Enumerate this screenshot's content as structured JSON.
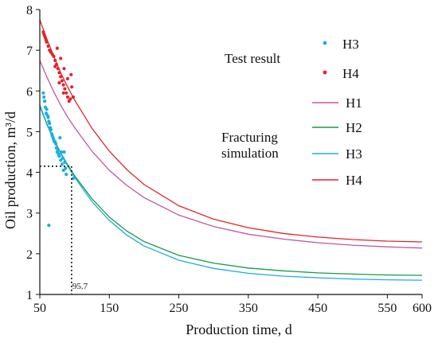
{
  "chart_data": {
    "type": "line",
    "xlabel": "Production time, d",
    "ylabel": "Oil production, m³/d",
    "xlim": [
      50,
      600
    ],
    "ylim": [
      1,
      8
    ],
    "xticks": [
      50,
      150,
      250,
      350,
      450,
      550,
      600
    ],
    "yticks": [
      1,
      2,
      3,
      4,
      5,
      6,
      7,
      8
    ],
    "grid": false,
    "legend_groups": [
      {
        "label": "Test result",
        "entries": [
          "H3",
          "H4"
        ]
      },
      {
        "label_lines": [
          "Fracturing",
          "simulation"
        ],
        "entries": [
          "H1",
          "H2",
          "H3",
          "H4"
        ]
      }
    ],
    "series": [
      {
        "name": "H1",
        "kind": "line",
        "color": "#c4579a",
        "x": [
          50,
          60,
          70,
          80,
          90,
          100,
          125,
          150,
          175,
          200,
          250,
          300,
          350,
          400,
          450,
          500,
          550,
          600
        ],
        "y": [
          6.75,
          6.35,
          5.98,
          5.65,
          5.36,
          5.1,
          4.52,
          4.05,
          3.68,
          3.38,
          2.95,
          2.67,
          2.48,
          2.36,
          2.27,
          2.21,
          2.17,
          2.14
        ]
      },
      {
        "name": "H2",
        "kind": "line",
        "color": "#1a9a4a",
        "x": [
          50,
          60,
          70,
          80,
          90,
          100,
          125,
          150,
          175,
          200,
          250,
          300,
          350,
          400,
          450,
          500,
          550,
          600
        ],
        "y": [
          5.65,
          5.2,
          4.82,
          4.48,
          4.19,
          3.92,
          3.35,
          2.9,
          2.56,
          2.3,
          1.96,
          1.77,
          1.65,
          1.58,
          1.53,
          1.5,
          1.48,
          1.47
        ]
      },
      {
        "name": "H3",
        "kind": "line",
        "color": "#1aaee0",
        "x": [
          50,
          60,
          70,
          80,
          90,
          100,
          125,
          150,
          175,
          200,
          250,
          300,
          350,
          400,
          450,
          500,
          550,
          600
        ],
        "y": [
          5.62,
          5.18,
          4.8,
          4.46,
          4.16,
          3.88,
          3.28,
          2.82,
          2.46,
          2.19,
          1.84,
          1.64,
          1.52,
          1.45,
          1.41,
          1.38,
          1.36,
          1.35
        ]
      },
      {
        "name": "H4",
        "kind": "line",
        "color": "#e0252c",
        "x": [
          50,
          60,
          70,
          80,
          90,
          100,
          125,
          150,
          175,
          200,
          250,
          300,
          350,
          400,
          450,
          500,
          550,
          600
        ],
        "y": [
          7.75,
          7.28,
          6.85,
          6.45,
          6.1,
          5.78,
          5.08,
          4.52,
          4.07,
          3.7,
          3.18,
          2.85,
          2.64,
          2.5,
          2.41,
          2.35,
          2.31,
          2.29
        ]
      },
      {
        "name": "H3",
        "kind": "scatter",
        "color": "#1aaee0",
        "x": [
          55,
          56,
          57,
          58,
          59,
          60,
          61,
          62,
          63,
          64,
          65,
          66,
          67,
          68,
          69,
          70,
          71,
          72,
          73,
          74,
          75,
          76,
          77,
          78,
          79,
          80,
          81,
          82,
          83,
          84,
          85,
          86,
          87,
          88,
          98,
          63
        ],
        "y": [
          5.95,
          5.85,
          5.75,
          5.6,
          5.45,
          5.55,
          5.4,
          5.35,
          5.25,
          5.2,
          5.1,
          5.05,
          4.95,
          4.9,
          4.85,
          4.8,
          4.75,
          4.75,
          4.7,
          4.6,
          4.5,
          4.55,
          4.45,
          4.4,
          4.85,
          4.3,
          4.5,
          4.2,
          4.35,
          4.05,
          4.5,
          4.25,
          4.1,
          3.95,
          3.85,
          2.7
        ]
      },
      {
        "name": "H4",
        "kind": "scatter",
        "color": "#e0252c",
        "x": [
          55,
          56,
          57,
          58,
          59,
          60,
          62,
          64,
          66,
          68,
          70,
          72,
          74,
          76,
          78,
          80,
          82,
          84,
          86,
          88,
          90,
          92,
          94,
          96,
          98,
          75,
          80,
          85,
          90,
          95,
          72,
          78,
          84
        ],
        "y": [
          7.45,
          7.4,
          7.35,
          7.3,
          7.25,
          7.2,
          7.1,
          7.0,
          6.95,
          6.9,
          6.85,
          6.75,
          6.65,
          6.55,
          6.45,
          6.35,
          6.25,
          6.15,
          6.05,
          5.95,
          5.85,
          5.75,
          5.8,
          6.1,
          5.85,
          7.05,
          6.8,
          6.55,
          6.3,
          6.4,
          6.6,
          6.2,
          5.95
        ]
      }
    ],
    "annotation": {
      "label": "95.7",
      "x": 95.7,
      "y": 4.15,
      "color": "#111111"
    }
  }
}
